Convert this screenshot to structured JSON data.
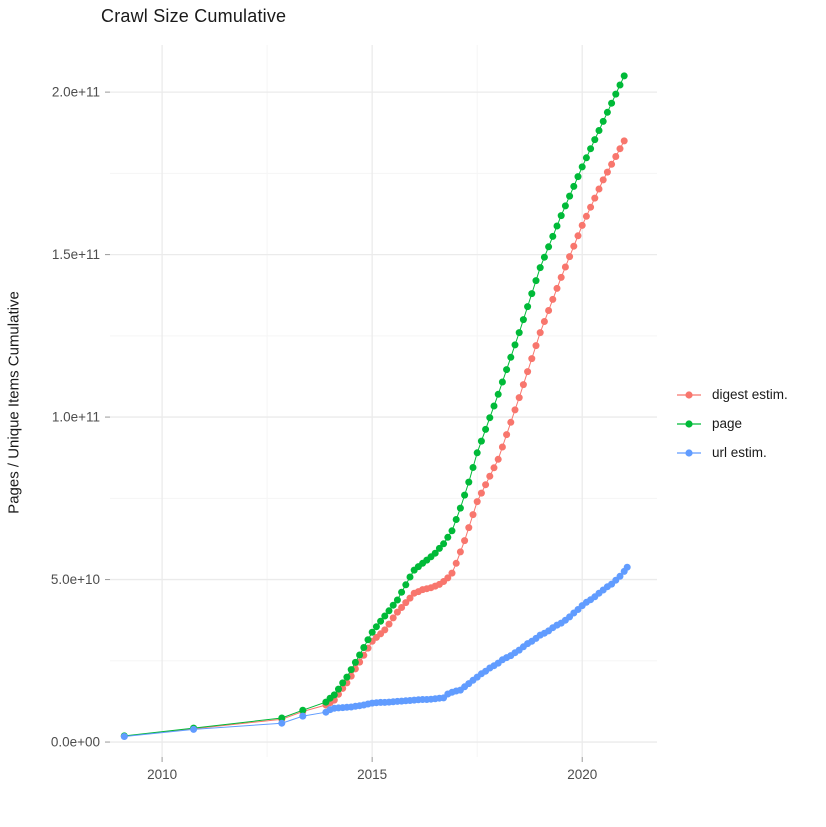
{
  "title": "Crawl Size Cumulative",
  "axes": {
    "y_title": "Pages / Unique Items Cumulative",
    "x_title": ""
  },
  "legend": {
    "items": [
      {
        "label": "digest estim.",
        "color": "#F8766D"
      },
      {
        "label": "page",
        "color": "#00BA38"
      },
      {
        "label": "url estim.",
        "color": "#619CFF"
      }
    ]
  },
  "colors": {
    "series_red": "#F8766D",
    "series_green": "#00BA38",
    "series_blue": "#619CFF",
    "grid_major": "#EBEBEB",
    "grid_minor": "#F5F5F5",
    "axis_text": "#4D4D4D",
    "tick_mark": "#999999",
    "title_text": "#1A1A1A",
    "background": "#FFFFFF"
  },
  "chart_data": {
    "type": "scatter",
    "title": "Crawl Size Cumulative",
    "xlabel": "",
    "ylabel": "Pages / Unique Items Cumulative",
    "legend_position": "right",
    "grid": "major+minor",
    "note": "y values stored in billions (1e9); cumulative crawl size over time",
    "xlim": [
      2008.76,
      2021.78
    ],
    "ylim": [
      -4.6,
      214.5
    ],
    "x_ticks": [
      2010,
      2015,
      2020
    ],
    "x_tick_labels": [
      "2010",
      "2015",
      "2020"
    ],
    "x_minor": [
      2012.5,
      2017.5
    ],
    "y_ticks": [
      0,
      50,
      100,
      150,
      200
    ],
    "y_tick_labels": [
      "0.0e+00",
      "5.0e+10",
      "1.0e+11",
      "1.5e+11",
      "2.0e+11"
    ],
    "y_minor": [
      25,
      75,
      125,
      175
    ],
    "series": [
      {
        "name": "digest estim.",
        "color": "#F8766D",
        "points": [
          [
            2009.1,
            1.8
          ],
          [
            2010.75,
            4.1
          ],
          [
            2012.85,
            7.0
          ],
          [
            2013.35,
            9.4
          ],
          [
            2013.9,
            11.4
          ],
          [
            2014.0,
            12.1
          ],
          [
            2014.1,
            12.9
          ],
          [
            2014.2,
            14.7
          ],
          [
            2014.3,
            16.5
          ],
          [
            2014.4,
            18.2
          ],
          [
            2014.5,
            20.3
          ],
          [
            2014.6,
            22.5
          ],
          [
            2014.7,
            24.6
          ],
          [
            2014.8,
            26.7
          ],
          [
            2014.9,
            28.9
          ],
          [
            2015.0,
            31.0
          ],
          [
            2015.1,
            32.2
          ],
          [
            2015.2,
            33.3
          ],
          [
            2015.3,
            34.5
          ],
          [
            2015.4,
            36.3
          ],
          [
            2015.5,
            38.2
          ],
          [
            2015.6,
            40.0
          ],
          [
            2015.7,
            41.4
          ],
          [
            2015.8,
            42.9
          ],
          [
            2015.9,
            44.3
          ],
          [
            2016.0,
            45.8
          ],
          [
            2016.1,
            46.3
          ],
          [
            2016.2,
            46.9
          ],
          [
            2016.3,
            47.2
          ],
          [
            2016.4,
            47.5
          ],
          [
            2016.5,
            48.0
          ],
          [
            2016.6,
            48.5
          ],
          [
            2016.7,
            49.4
          ],
          [
            2016.8,
            50.5
          ],
          [
            2016.9,
            52.0
          ],
          [
            2017.0,
            55.0
          ],
          [
            2017.1,
            58.5
          ],
          [
            2017.2,
            62.0
          ],
          [
            2017.3,
            66.0
          ],
          [
            2017.4,
            70.0
          ],
          [
            2017.5,
            74.0
          ],
          [
            2017.6,
            76.6
          ],
          [
            2017.7,
            79.2
          ],
          [
            2017.8,
            81.8
          ],
          [
            2017.9,
            84.4
          ],
          [
            2018.0,
            87.0
          ],
          [
            2018.1,
            90.8
          ],
          [
            2018.2,
            94.6
          ],
          [
            2018.3,
            98.4
          ],
          [
            2018.4,
            102.2
          ],
          [
            2018.5,
            106.0
          ],
          [
            2018.6,
            110.0
          ],
          [
            2018.7,
            114.0
          ],
          [
            2018.8,
            118.0
          ],
          [
            2018.9,
            122.0
          ],
          [
            2019.0,
            126.0
          ],
          [
            2019.1,
            129.4
          ],
          [
            2019.2,
            132.8
          ],
          [
            2019.3,
            136.2
          ],
          [
            2019.4,
            139.6
          ],
          [
            2019.5,
            143.0
          ],
          [
            2019.6,
            146.2
          ],
          [
            2019.7,
            149.4
          ],
          [
            2019.8,
            152.6
          ],
          [
            2019.9,
            155.8
          ],
          [
            2020.0,
            159.0
          ],
          [
            2020.1,
            161.8
          ],
          [
            2020.2,
            164.6
          ],
          [
            2020.3,
            167.4
          ],
          [
            2020.4,
            170.2
          ],
          [
            2020.5,
            173.0
          ],
          [
            2020.6,
            175.4
          ],
          [
            2020.7,
            177.8
          ],
          [
            2020.8,
            180.2
          ],
          [
            2020.9,
            182.6
          ],
          [
            2021.0,
            185.0
          ]
        ]
      },
      {
        "name": "page",
        "color": "#00BA38",
        "points": [
          [
            2009.1,
            1.9
          ],
          [
            2010.75,
            4.3
          ],
          [
            2012.85,
            7.4
          ],
          [
            2013.35,
            9.8
          ],
          [
            2013.9,
            12.3
          ],
          [
            2014.0,
            13.5
          ],
          [
            2014.1,
            14.5
          ],
          [
            2014.2,
            16.3
          ],
          [
            2014.3,
            18.2
          ],
          [
            2014.4,
            20.0
          ],
          [
            2014.5,
            22.3
          ],
          [
            2014.6,
            24.5
          ],
          [
            2014.7,
            26.8
          ],
          [
            2014.8,
            29.1
          ],
          [
            2014.9,
            31.5
          ],
          [
            2015.0,
            33.8
          ],
          [
            2015.1,
            35.5
          ],
          [
            2015.2,
            37.2
          ],
          [
            2015.3,
            38.8
          ],
          [
            2015.4,
            40.4
          ],
          [
            2015.5,
            42.1
          ],
          [
            2015.6,
            43.7
          ],
          [
            2015.7,
            46.1
          ],
          [
            2015.8,
            48.4
          ],
          [
            2015.9,
            50.8
          ],
          [
            2016.0,
            52.9
          ],
          [
            2016.1,
            54.0
          ],
          [
            2016.2,
            55.0
          ],
          [
            2016.3,
            56.0
          ],
          [
            2016.4,
            57.0
          ],
          [
            2016.5,
            58.1
          ],
          [
            2016.6,
            59.6
          ],
          [
            2016.7,
            61.0
          ],
          [
            2016.8,
            63.0
          ],
          [
            2016.9,
            65.0
          ],
          [
            2017.0,
            68.5
          ],
          [
            2017.1,
            72.0
          ],
          [
            2017.2,
            76.0
          ],
          [
            2017.3,
            80.0
          ],
          [
            2017.4,
            84.5
          ],
          [
            2017.5,
            89.0
          ],
          [
            2017.6,
            92.6
          ],
          [
            2017.7,
            96.2
          ],
          [
            2017.8,
            99.8
          ],
          [
            2017.9,
            103.4
          ],
          [
            2018.0,
            107.0
          ],
          [
            2018.1,
            110.8
          ],
          [
            2018.2,
            114.6
          ],
          [
            2018.3,
            118.4
          ],
          [
            2018.4,
            122.2
          ],
          [
            2018.5,
            126.0
          ],
          [
            2018.6,
            130.0
          ],
          [
            2018.7,
            134.0
          ],
          [
            2018.8,
            138.0
          ],
          [
            2018.9,
            142.0
          ],
          [
            2019.0,
            146.0
          ],
          [
            2019.1,
            149.2
          ],
          [
            2019.2,
            152.4
          ],
          [
            2019.3,
            155.6
          ],
          [
            2019.4,
            158.8
          ],
          [
            2019.5,
            162.0
          ],
          [
            2019.6,
            165.0
          ],
          [
            2019.7,
            168.0
          ],
          [
            2019.8,
            171.0
          ],
          [
            2019.9,
            174.0
          ],
          [
            2020.0,
            177.0
          ],
          [
            2020.1,
            179.8
          ],
          [
            2020.2,
            182.6
          ],
          [
            2020.3,
            185.4
          ],
          [
            2020.4,
            188.2
          ],
          [
            2020.5,
            191.0
          ],
          [
            2020.6,
            193.8
          ],
          [
            2020.7,
            196.6
          ],
          [
            2020.8,
            199.4
          ],
          [
            2020.9,
            202.2
          ],
          [
            2021.0,
            205.0
          ]
        ]
      },
      {
        "name": "url estim.",
        "color": "#619CFF",
        "points": [
          [
            2009.1,
            1.7
          ],
          [
            2010.75,
            3.9
          ],
          [
            2012.85,
            5.8
          ],
          [
            2013.35,
            8.0
          ],
          [
            2013.9,
            9.2
          ],
          [
            2014.0,
            10.0
          ],
          [
            2014.1,
            10.4
          ],
          [
            2014.2,
            10.5
          ],
          [
            2014.3,
            10.6
          ],
          [
            2014.4,
            10.7
          ],
          [
            2014.5,
            10.8
          ],
          [
            2014.6,
            11.0
          ],
          [
            2014.7,
            11.2
          ],
          [
            2014.8,
            11.4
          ],
          [
            2014.9,
            11.7
          ],
          [
            2015.0,
            12.0
          ],
          [
            2015.1,
            12.1
          ],
          [
            2015.2,
            12.2
          ],
          [
            2015.3,
            12.2
          ],
          [
            2015.4,
            12.3
          ],
          [
            2015.5,
            12.4
          ],
          [
            2015.6,
            12.5
          ],
          [
            2015.7,
            12.6
          ],
          [
            2015.8,
            12.7
          ],
          [
            2015.9,
            12.8
          ],
          [
            2016.0,
            12.9
          ],
          [
            2016.1,
            13.0
          ],
          [
            2016.2,
            13.1
          ],
          [
            2016.3,
            13.1
          ],
          [
            2016.4,
            13.2
          ],
          [
            2016.5,
            13.3
          ],
          [
            2016.6,
            13.5
          ],
          [
            2016.7,
            13.6
          ],
          [
            2016.8,
            14.8
          ],
          [
            2016.9,
            15.3
          ],
          [
            2017.0,
            15.7
          ],
          [
            2017.1,
            16.0
          ],
          [
            2017.2,
            17.0
          ],
          [
            2017.3,
            18.0
          ],
          [
            2017.4,
            19.0
          ],
          [
            2017.5,
            20.0
          ],
          [
            2017.6,
            21.0
          ],
          [
            2017.7,
            21.8
          ],
          [
            2017.8,
            22.8
          ],
          [
            2017.9,
            23.5
          ],
          [
            2018.0,
            24.3
          ],
          [
            2018.1,
            25.3
          ],
          [
            2018.2,
            26.0
          ],
          [
            2018.3,
            26.6
          ],
          [
            2018.4,
            27.5
          ],
          [
            2018.5,
            28.3
          ],
          [
            2018.6,
            29.3
          ],
          [
            2018.7,
            30.3
          ],
          [
            2018.8,
            31.0
          ],
          [
            2018.9,
            31.9
          ],
          [
            2019.0,
            32.9
          ],
          [
            2019.1,
            33.5
          ],
          [
            2019.2,
            34.2
          ],
          [
            2019.3,
            35.2
          ],
          [
            2019.4,
            36.0
          ],
          [
            2019.5,
            36.6
          ],
          [
            2019.6,
            37.5
          ],
          [
            2019.7,
            38.5
          ],
          [
            2019.8,
            39.7
          ],
          [
            2019.9,
            40.8
          ],
          [
            2020.0,
            42.0
          ],
          [
            2020.1,
            43.0
          ],
          [
            2020.2,
            43.8
          ],
          [
            2020.3,
            44.7
          ],
          [
            2020.4,
            45.8
          ],
          [
            2020.5,
            46.8
          ],
          [
            2020.6,
            47.8
          ],
          [
            2020.7,
            48.6
          ],
          [
            2020.8,
            49.8
          ],
          [
            2020.9,
            51.0
          ],
          [
            2021.0,
            52.5
          ],
          [
            2021.07,
            53.8
          ]
        ]
      }
    ]
  }
}
